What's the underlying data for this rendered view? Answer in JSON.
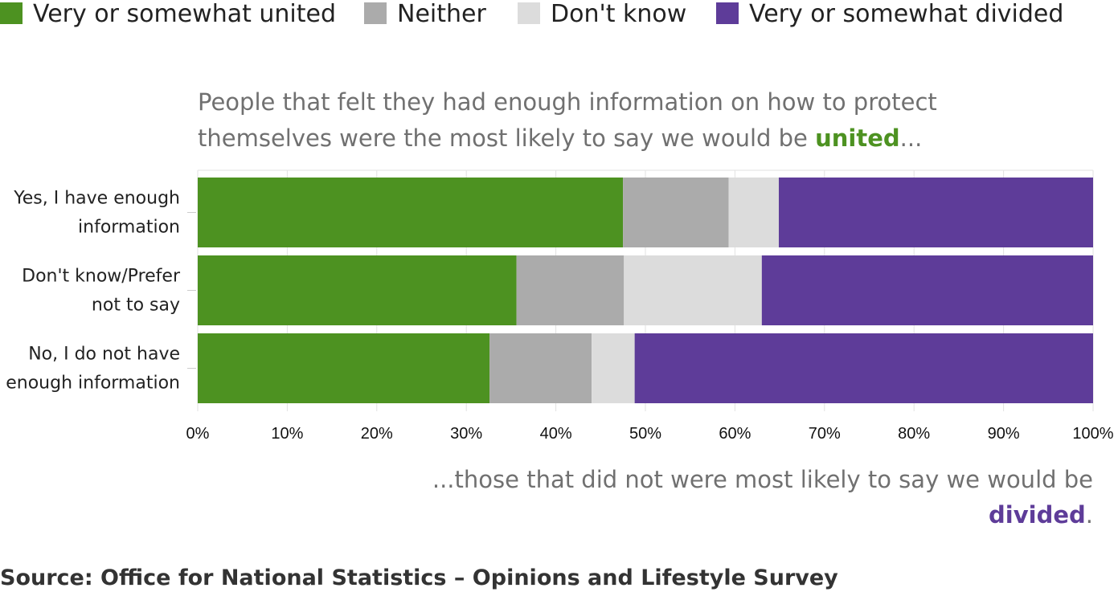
{
  "chart_data": {
    "type": "bar",
    "orientation": "horizontal",
    "stacked": true,
    "normalized": true,
    "categories": [
      [
        "Yes, I have enough",
        "information"
      ],
      [
        "Don't know/Prefer",
        "not to say"
      ],
      [
        "No, I do not have",
        "enough information"
      ]
    ],
    "series": [
      {
        "name": "Very or somewhat united",
        "color": "#4d9221",
        "values": [
          47.5,
          35.6,
          32.6
        ]
      },
      {
        "name": "Neither",
        "color": "#ababab",
        "values": [
          11.8,
          12.0,
          11.4
        ]
      },
      {
        "name": "Don't know",
        "color": "#dcdcdc",
        "values": [
          5.6,
          15.4,
          4.8
        ]
      },
      {
        "name": "Very or somewhat divided",
        "color": "#5e3c99",
        "values": [
          35.1,
          37.0,
          51.2
        ]
      }
    ],
    "xlim": [
      0,
      100
    ],
    "x_ticks": [
      "0%",
      "10%",
      "20%",
      "30%",
      "40%",
      "50%",
      "60%",
      "70%",
      "80%",
      "90%",
      "100%"
    ],
    "grid": true,
    "legend_position": "top",
    "annotations": {
      "top": {
        "lines": [
          [
            {
              "text": "People that felt they had enough information on how to protect"
            }
          ],
          [
            {
              "text": "themselves were the most likely to say we would be "
            },
            {
              "text": "united",
              "strong": true,
              "color": "#4d9221"
            },
            {
              "text": "..."
            }
          ]
        ]
      },
      "bottom": {
        "lines": [
          [
            {
              "text": "...those that did not were most likely to say we would be"
            }
          ],
          [
            {
              "text": "divided",
              "strong": true,
              "color": "#5e3c99"
            },
            {
              "text": "."
            }
          ]
        ]
      }
    }
  },
  "source": "Source: Office for National Statistics – Opinions and Lifestyle Survey"
}
